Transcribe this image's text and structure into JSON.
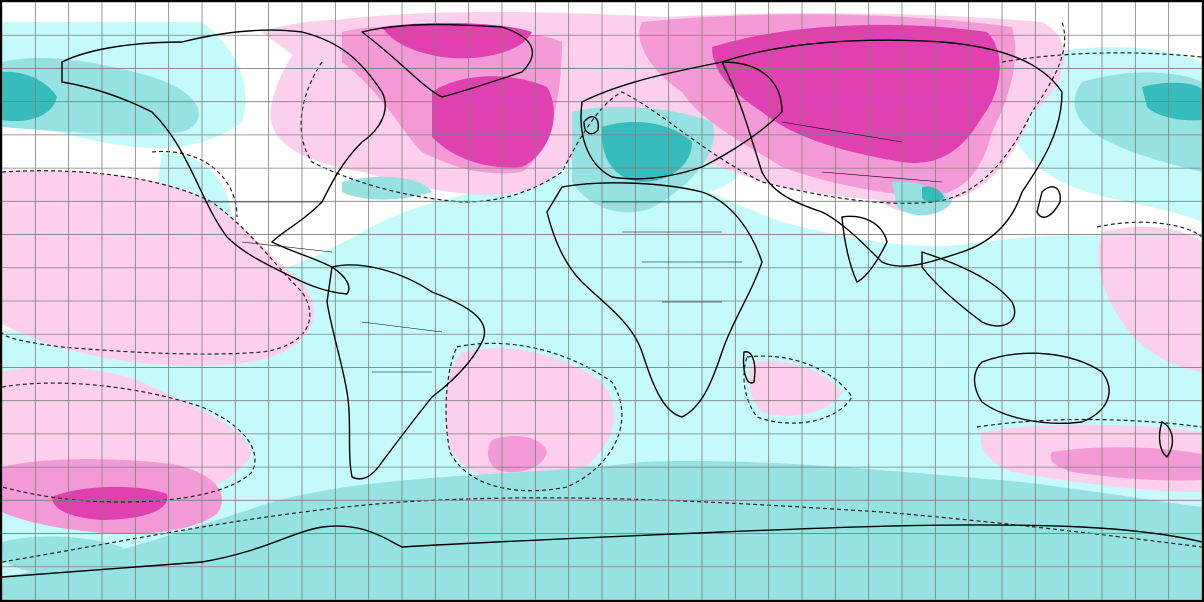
{
  "map": {
    "projection": "equirectangular",
    "extent": {
      "lon": [
        -180,
        180
      ],
      "lat": [
        -90,
        90
      ]
    },
    "graticule_spacing_deg": 10,
    "palette": {
      "background": "#ffffff",
      "light_pink": "#fcd0ec",
      "mid_pink": "#f49ad6",
      "deep_pink": "#e040b0",
      "light_cyan": "#c4fafa",
      "mid_cyan": "#96e2e2",
      "deep_cyan": "#36bcbc",
      "frame": "#000000",
      "grid": "#7f7f7f",
      "coast": "#000000"
    }
  }
}
